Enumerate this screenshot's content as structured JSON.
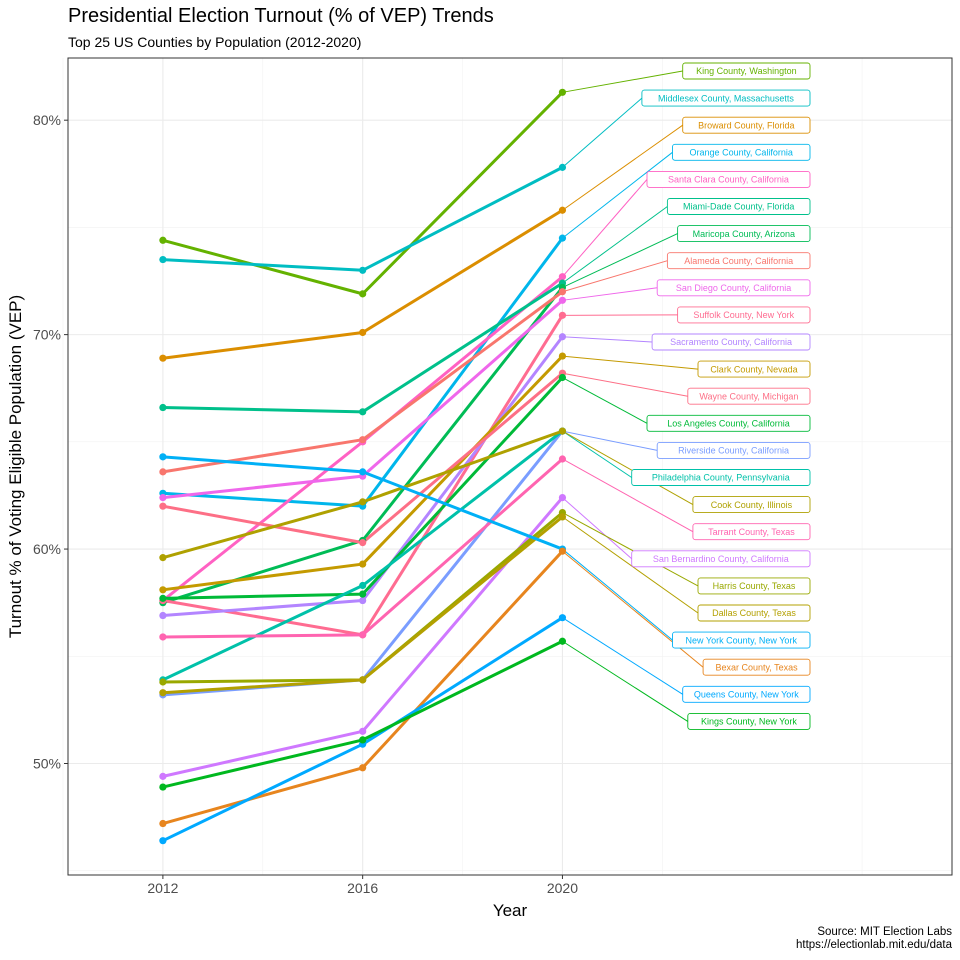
{
  "header": {
    "title": "Presidential Election Turnout (% of VEP) Trends",
    "subtitle": "Top 25 US Counties by Population (2012-2020)"
  },
  "caption": {
    "line1": "Source: MIT Election Labs",
    "line2": "https://electionlab.mit.edu/data"
  },
  "chart_data": {
    "type": "line",
    "title": "Presidential Election Turnout (% of VEP) Trends",
    "subtitle": "Top 25 US Counties by Population (2012-2020)",
    "xlabel": "Year",
    "ylabel": "Turnout % of Voting Eligible Population (VEP)",
    "x": [
      2012,
      2016,
      2020
    ],
    "xticks": [
      "2012",
      "2016",
      "2020"
    ],
    "yticks": [
      "50%",
      "60%",
      "70%",
      "80%"
    ],
    "ylim": [
      44.8,
      82.9
    ],
    "grid": true,
    "legend": "direct labels at right",
    "series": [
      {
        "name": "King County, Washington",
        "color": "#64B200",
        "values": [
          74.4,
          71.9,
          81.3
        ]
      },
      {
        "name": "Middlesex County, Massachusetts",
        "color": "#00BDC2",
        "values": [
          73.5,
          73.0,
          77.8
        ]
      },
      {
        "name": "Broward County, Florida",
        "color": "#DB8E00",
        "values": [
          68.9,
          70.1,
          75.8
        ]
      },
      {
        "name": "Orange County, California",
        "color": "#00B6EB",
        "values": [
          62.6,
          62.0,
          74.5
        ]
      },
      {
        "name": "Santa Clara County, California",
        "color": "#FF61C3",
        "values": [
          57.6,
          65.0,
          72.7
        ]
      },
      {
        "name": "Miami-Dade County, Florida",
        "color": "#00C08B",
        "values": [
          66.6,
          66.4,
          72.4
        ]
      },
      {
        "name": "Maricopa County, Arizona",
        "color": "#00BC56",
        "values": [
          57.5,
          60.4,
          72.2
        ]
      },
      {
        "name": "Alameda County, California",
        "color": "#F8766D",
        "values": [
          63.6,
          65.1,
          72.0
        ]
      },
      {
        "name": "San Diego County, California",
        "color": "#EF67EB",
        "values": [
          62.4,
          63.4,
          71.6
        ]
      },
      {
        "name": "Suffolk County, New York",
        "color": "#FF6C91",
        "values": [
          57.6,
          56.0,
          70.9
        ]
      },
      {
        "name": "Sacramento County, California",
        "color": "#B385FF",
        "values": [
          56.9,
          57.6,
          69.9
        ]
      },
      {
        "name": "Clark County, Nevada",
        "color": "#C49A00",
        "values": [
          58.1,
          59.3,
          69.0
        ]
      },
      {
        "name": "Wayne County, Michigan",
        "color": "#FD6F86",
        "values": [
          62.0,
          60.3,
          68.2
        ]
      },
      {
        "name": "Los Angeles County, California",
        "color": "#00BA38",
        "values": [
          57.7,
          57.9,
          68.0
        ]
      },
      {
        "name": "Riverside County, California",
        "color": "#7A9DFF",
        "values": [
          53.2,
          53.9,
          65.5
        ]
      },
      {
        "name": "Philadelphia County, Pennsylvania",
        "color": "#00C1A9",
        "values": [
          53.9,
          58.3,
          65.5
        ]
      },
      {
        "name": "Cook County, Illinois",
        "color": "#AFA100",
        "values": [
          59.6,
          62.2,
          65.5
        ]
      },
      {
        "name": "Tarrant County, Texas",
        "color": "#FF64B0",
        "values": [
          55.9,
          56.0,
          64.2
        ]
      },
      {
        "name": "San Bernardino County, California",
        "color": "#CF78FF",
        "values": [
          49.4,
          51.5,
          62.4
        ]
      },
      {
        "name": "Harris County, Texas",
        "color": "#99A800",
        "values": [
          53.8,
          53.9,
          61.7
        ]
      },
      {
        "name": "Dallas County, Texas",
        "color": "#B3A000",
        "values": [
          53.3,
          53.9,
          61.5
        ]
      },
      {
        "name": "New York County, New York",
        "color": "#00B0F6",
        "values": [
          64.3,
          63.6,
          60.0
        ]
      },
      {
        "name": "Bexar County, Texas",
        "color": "#E7851E",
        "values": [
          47.2,
          49.8,
          59.9
        ]
      },
      {
        "name": "Queens County, New York",
        "color": "#00A9FF",
        "values": [
          46.4,
          50.9,
          56.8
        ]
      },
      {
        "name": "Kings County, New York",
        "color": "#00B81F",
        "values": [
          48.9,
          51.1,
          55.7
        ]
      }
    ]
  }
}
